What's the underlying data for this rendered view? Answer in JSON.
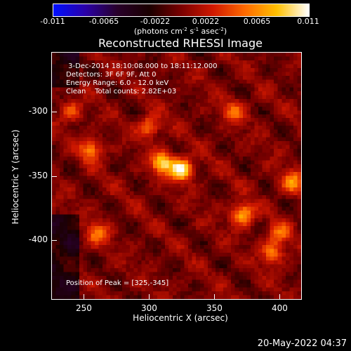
{
  "colorbar": {
    "ticks": [
      "-0.011",
      "-0.0065",
      "-0.0022",
      "0.0022",
      "0.0065",
      "0.011"
    ],
    "units_text": "(photons cm",
    "units_exp1": "-2",
    "units_mid": " s",
    "units_exp2": "-1",
    "units_end": " asec",
    "units_exp3": "-2",
    "units_close": ")",
    "range": [
      -0.011,
      0.011
    ]
  },
  "chart_data": {
    "type": "heatmap",
    "title": "Reconstructed RHESSI Image",
    "xlabel": "Heliocentric X (arcsec)",
    "ylabel": "Heliocentric Y (arcsec)",
    "xticks": [
      "250",
      "300",
      "350",
      "400"
    ],
    "yticks": [
      "-300",
      "-350",
      "-400"
    ],
    "xlim": [
      225,
      417
    ],
    "ylim": [
      -446,
      -254
    ],
    "colormap": [
      "#0010ff",
      "#2a00a8",
      "#28002a",
      "#1a0000",
      "#7a0000",
      "#d01800",
      "#ff6a00",
      "#ffc000",
      "#ffffff"
    ],
    "peak": [
      325,
      -345
    ],
    "sources": [
      {
        "x": 325,
        "y": -345,
        "value": 0.011
      },
      {
        "x": 310,
        "y": -340,
        "value": 0.009
      },
      {
        "x": 372,
        "y": -380,
        "value": 0.0085
      },
      {
        "x": 255,
        "y": -330,
        "value": 0.0065
      },
      {
        "x": 300,
        "y": -312,
        "value": 0.006
      },
      {
        "x": 365,
        "y": -300,
        "value": 0.005
      },
      {
        "x": 410,
        "y": -355,
        "value": 0.0065
      },
      {
        "x": 395,
        "y": -410,
        "value": 0.006
      },
      {
        "x": 260,
        "y": -395,
        "value": 0.0055
      },
      {
        "x": 240,
        "y": -300,
        "value": 0.0045
      },
      {
        "x": 400,
        "y": -395,
        "value": 0.005
      }
    ]
  },
  "info": {
    "line1": " 3-Dec-2014 18:10:08.000 to 18:11:12.000",
    "line2": "Detectors: 3F 6F 9F, Att 0",
    "line3": "Energy Range: 6.0 - 12.0 keV",
    "line4": "Clean    Total counts: 2.82E+03",
    "peak_label": "Position of Peak = [325,-345]"
  },
  "timestamp": "20-May-2022 04:37"
}
